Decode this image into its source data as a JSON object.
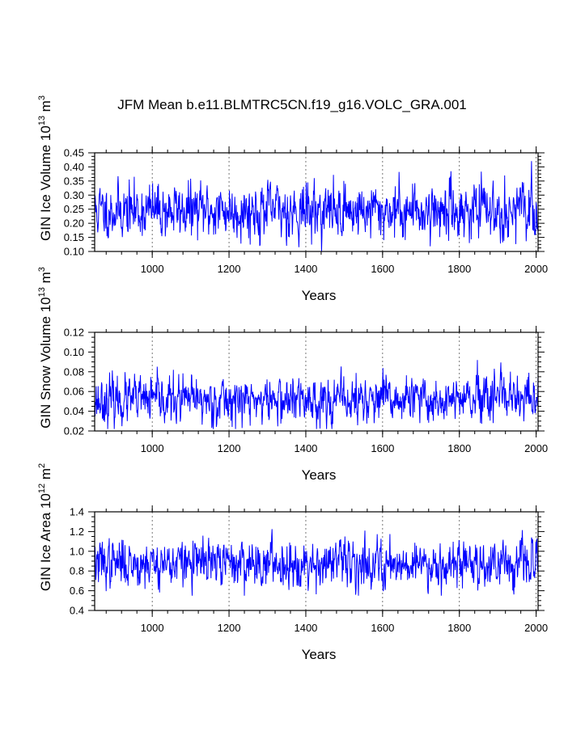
{
  "figure": {
    "title": "JFM Mean b.e11.BLMTRC5CN.f19_g16.VOLC_GRA.001"
  },
  "chart_data": [
    {
      "type": "line",
      "title": "JFM Mean b.e11.BLMTRC5CN.f19_g16.VOLC_GRA.001",
      "xlabel": "Years",
      "ylabel": "GIN Ice Volume 10",
      "ylabel_sup1": "13",
      "ylabel_unit": " m",
      "ylabel_sup2": "3",
      "xlim": [
        850,
        2005
      ],
      "ylim": [
        0.1,
        0.45
      ],
      "xticks": [
        1000,
        1200,
        1400,
        1600,
        1800,
        2000
      ],
      "xtick_labels": [
        "1000",
        "1200",
        "1400",
        "1600",
        "1800",
        "2000"
      ],
      "yticks": [
        0.1,
        0.15,
        0.2,
        0.25,
        0.3,
        0.35,
        0.4,
        0.45
      ],
      "ytick_labels": [
        "0.10",
        "0.15",
        "0.20",
        "0.25",
        "0.30",
        "0.35",
        "0.40",
        "0.45"
      ],
      "grid": "dashed vertical at x ticks",
      "line_color": "#0000ff",
      "series": [
        {
          "name": "GIN Ice Volume",
          "x_start": 850,
          "x_end": 2005,
          "mean": 0.245,
          "std": 0.045,
          "min": 0.1,
          "max": 0.43,
          "seed": 11
        }
      ]
    },
    {
      "type": "line",
      "xlabel": "Years",
      "ylabel": "GIN Snow Volume 10",
      "ylabel_sup1": "13",
      "ylabel_unit": " m",
      "ylabel_sup2": "3",
      "xlim": [
        850,
        2005
      ],
      "ylim": [
        0.02,
        0.12
      ],
      "xticks": [
        1000,
        1200,
        1400,
        1600,
        1800,
        2000
      ],
      "xtick_labels": [
        "1000",
        "1200",
        "1400",
        "1600",
        "1800",
        "2000"
      ],
      "yticks": [
        0.02,
        0.04,
        0.06,
        0.08,
        0.1,
        0.12
      ],
      "ytick_labels": [
        "0.02",
        "0.04",
        "0.06",
        "0.08",
        "0.10",
        "0.12"
      ],
      "grid": "dashed vertical at x ticks",
      "line_color": "#0000ff",
      "series": [
        {
          "name": "GIN Snow Volume",
          "x_start": 850,
          "x_end": 2005,
          "mean": 0.051,
          "std": 0.011,
          "min": 0.022,
          "max": 0.102,
          "seed": 23
        }
      ]
    },
    {
      "type": "line",
      "xlabel": "Years",
      "ylabel": "GIN Ice Area 10",
      "ylabel_sup1": "12",
      "ylabel_unit": " m",
      "ylabel_sup2": "2",
      "xlim": [
        850,
        2005
      ],
      "ylim": [
        0.4,
        1.4
      ],
      "xticks": [
        1000,
        1200,
        1400,
        1600,
        1800,
        2000
      ],
      "xtick_labels": [
        "1000",
        "1200",
        "1400",
        "1600",
        "1800",
        "2000"
      ],
      "yticks": [
        0.4,
        0.6,
        0.8,
        1.0,
        1.2,
        1.4
      ],
      "ytick_labels": [
        "0.4",
        "0.6",
        "0.8",
        "1.0",
        "1.2",
        "1.4"
      ],
      "grid": "dashed vertical at x ticks",
      "line_color": "#0000ff",
      "series": [
        {
          "name": "GIN Ice Area",
          "x_start": 850,
          "x_end": 2005,
          "mean": 0.88,
          "std": 0.11,
          "min": 0.55,
          "max": 1.25,
          "seed": 37
        }
      ]
    }
  ]
}
